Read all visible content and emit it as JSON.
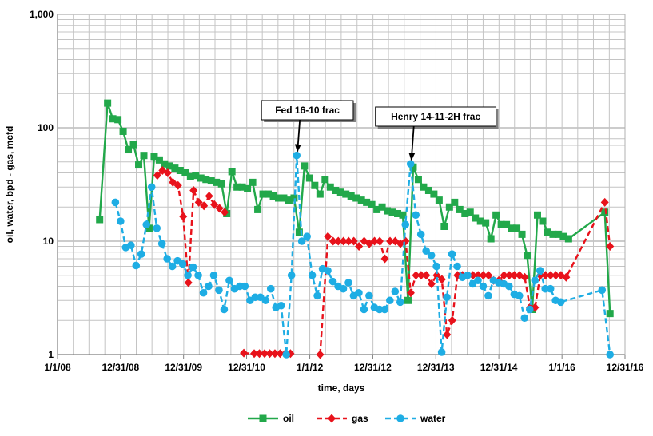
{
  "chart_data": {
    "type": "line",
    "yscale": "log",
    "ylim": [
      1,
      1000
    ],
    "xlim": [
      "2008-01-01",
      "2016-12-31"
    ],
    "ylabel": "oil, water, bpd - gas, mcfd",
    "xlabel": "time, days",
    "x_ticks": [
      {
        "date": "2008-01-01",
        "label": "1/1/08"
      },
      {
        "date": "2008-12-31",
        "label": "12/31/08"
      },
      {
        "date": "2009-12-31",
        "label": "12/31/09"
      },
      {
        "date": "2010-12-31",
        "label": "12/31/10"
      },
      {
        "date": "2012-01-01",
        "label": "1/1/12"
      },
      {
        "date": "2012-12-31",
        "label": "12/31/12"
      },
      {
        "date": "2013-12-31",
        "label": "12/31/13"
      },
      {
        "date": "2014-12-31",
        "label": "12/31/14"
      },
      {
        "date": "2016-01-01",
        "label": "1/1/16"
      },
      {
        "date": "2016-12-31",
        "label": "12/31/16"
      }
    ],
    "y_ticks": [
      {
        "value": 1,
        "label": "1"
      },
      {
        "value": 10,
        "label": "10"
      },
      {
        "value": 100,
        "label": "100"
      },
      {
        "value": 1000,
        "label": "1,000"
      }
    ],
    "grid": true,
    "legend_position": "bottom-center",
    "series": [
      {
        "name": "oil",
        "color": "#22A84A",
        "marker": "square",
        "dash": "solid",
        "points": [
          [
            "2008-09-01",
            15.5
          ],
          [
            "2008-10-17",
            165
          ],
          [
            "2008-11-16",
            120
          ],
          [
            "2008-12-16",
            118
          ],
          [
            "2009-01-15",
            93
          ],
          [
            "2009-02-14",
            64
          ],
          [
            "2009-03-16",
            71
          ],
          [
            "2009-04-15",
            47
          ],
          [
            "2009-05-15",
            57
          ],
          [
            "2009-06-14",
            13
          ],
          [
            "2009-07-14",
            56
          ],
          [
            "2009-08-13",
            52
          ],
          [
            "2009-09-12",
            48
          ],
          [
            "2009-10-12",
            46
          ],
          [
            "2009-11-11",
            44
          ],
          [
            "2009-12-11",
            42
          ],
          [
            "2010-01-10",
            40
          ],
          [
            "2010-02-09",
            37
          ],
          [
            "2010-03-11",
            38
          ],
          [
            "2010-04-10",
            36
          ],
          [
            "2010-05-10",
            35
          ],
          [
            "2010-06-09",
            34
          ],
          [
            "2010-07-09",
            33
          ],
          [
            "2010-08-08",
            32
          ],
          [
            "2010-09-07",
            17.5
          ],
          [
            "2010-10-07",
            41
          ],
          [
            "2010-11-06",
            30
          ],
          [
            "2010-12-06",
            30
          ],
          [
            "2011-01-05",
            29
          ],
          [
            "2011-02-04",
            33
          ],
          [
            "2011-03-06",
            19
          ],
          [
            "2011-04-05",
            26
          ],
          [
            "2011-05-05",
            26
          ],
          [
            "2011-06-04",
            25
          ],
          [
            "2011-07-04",
            24
          ],
          [
            "2011-08-03",
            24
          ],
          [
            "2011-09-02",
            23
          ],
          [
            "2011-10-02",
            24
          ],
          [
            "2011-11-01",
            12
          ],
          [
            "2011-12-01",
            46
          ],
          [
            "2011-12-31",
            36
          ],
          [
            "2012-01-30",
            31
          ],
          [
            "2012-02-29",
            26
          ],
          [
            "2012-03-30",
            35
          ],
          [
            "2012-04-29",
            30
          ],
          [
            "2012-05-29",
            28
          ],
          [
            "2012-06-28",
            27
          ],
          [
            "2012-07-28",
            26
          ],
          [
            "2012-08-27",
            25
          ],
          [
            "2012-09-26",
            24
          ],
          [
            "2012-10-26",
            23
          ],
          [
            "2012-11-25",
            22
          ],
          [
            "2012-12-25",
            21
          ],
          [
            "2013-01-24",
            19
          ],
          [
            "2013-02-23",
            20
          ],
          [
            "2013-03-25",
            18.5
          ],
          [
            "2013-04-24",
            18
          ],
          [
            "2013-05-24",
            17.5
          ],
          [
            "2013-06-23",
            17
          ],
          [
            "2013-07-23",
            3
          ],
          [
            "2013-08-22",
            45
          ],
          [
            "2013-09-21",
            35
          ],
          [
            "2013-10-21",
            30
          ],
          [
            "2013-11-20",
            28
          ],
          [
            "2013-12-20",
            26
          ],
          [
            "2014-01-19",
            23
          ],
          [
            "2014-02-18",
            13.5
          ],
          [
            "2014-03-20",
            20
          ],
          [
            "2014-04-19",
            22
          ],
          [
            "2014-05-19",
            19
          ],
          [
            "2014-06-18",
            17.5
          ],
          [
            "2014-07-18",
            18
          ],
          [
            "2014-08-17",
            16
          ],
          [
            "2014-09-16",
            15
          ],
          [
            "2014-10-16",
            14.5
          ],
          [
            "2014-11-15",
            10.5
          ],
          [
            "2014-12-15",
            17
          ],
          [
            "2015-01-14",
            14
          ],
          [
            "2015-02-13",
            14
          ],
          [
            "2015-03-15",
            13
          ],
          [
            "2015-04-14",
            13
          ],
          [
            "2015-05-14",
            11.5
          ],
          [
            "2015-06-13",
            7.5
          ],
          [
            "2015-07-13",
            2.5
          ],
          [
            "2015-08-12",
            17
          ],
          [
            "2015-09-11",
            15
          ],
          [
            "2015-10-11",
            12
          ],
          [
            "2015-11-10",
            11.5
          ],
          [
            "2015-12-10",
            11.5
          ],
          [
            "2016-01-09",
            11
          ],
          [
            "2016-02-08",
            10.5
          ],
          [
            "2016-09-05",
            18
          ],
          [
            "2016-10-05",
            2.3
          ]
        ]
      },
      {
        "name": "gas",
        "color": "#E8121B",
        "marker": "diamond",
        "dash": "dashed",
        "points": [
          [
            "2009-08-01",
            38
          ],
          [
            "2009-08-31",
            42
          ],
          [
            "2009-09-30",
            40
          ],
          [
            "2009-10-30",
            33
          ],
          [
            "2009-11-29",
            31
          ],
          [
            "2009-12-29",
            16.5
          ],
          [
            "2010-01-28",
            4.3
          ],
          [
            "2010-02-27",
            28
          ],
          [
            "2010-03-29",
            22
          ],
          [
            "2010-04-28",
            20.5
          ],
          [
            "2010-05-28",
            25
          ],
          [
            "2010-06-27",
            21
          ],
          [
            "2010-07-27",
            19.5
          ],
          [
            "2010-08-26",
            18
          ],
          null,
          [
            "2010-12-15",
            1.03
          ],
          [
            "2011-02-13",
            1.02
          ],
          [
            "2011-03-15",
            1.02
          ],
          [
            "2011-04-14",
            1.02
          ],
          [
            "2011-05-14",
            1.02
          ],
          [
            "2011-06-13",
            1.02
          ],
          [
            "2011-07-13",
            1.02
          ],
          [
            "2011-08-12",
            1.02
          ],
          [
            "2011-09-11",
            1.02
          ],
          null,
          [
            "2012-03-01",
            1
          ],
          [
            "2012-04-15",
            11
          ],
          [
            "2012-05-15",
            10
          ],
          [
            "2012-06-14",
            10
          ],
          [
            "2012-07-14",
            10
          ],
          [
            "2012-08-13",
            10
          ],
          [
            "2012-09-12",
            10
          ],
          [
            "2012-10-12",
            9
          ],
          [
            "2012-11-11",
            10
          ],
          [
            "2012-12-11",
            9.5
          ],
          [
            "2013-01-10",
            10
          ],
          [
            "2013-02-09",
            10
          ],
          [
            "2013-03-11",
            7
          ],
          [
            "2013-04-10",
            10
          ],
          [
            "2013-05-10",
            10
          ],
          [
            "2013-06-09",
            9.5
          ],
          [
            "2013-07-09",
            10
          ],
          [
            "2013-08-08",
            3.5
          ],
          [
            "2013-09-07",
            5
          ],
          [
            "2013-10-07",
            5
          ],
          [
            "2013-11-06",
            5
          ],
          [
            "2013-12-06",
            4.2
          ],
          [
            "2014-01-05",
            5
          ],
          [
            "2014-02-04",
            4.6
          ],
          [
            "2014-03-06",
            1.5
          ],
          [
            "2014-04-05",
            2
          ],
          [
            "2014-05-05",
            5
          ],
          [
            "2014-06-04",
            5
          ],
          [
            "2014-07-04",
            5
          ],
          [
            "2014-08-03",
            5
          ],
          [
            "2014-09-02",
            5
          ],
          [
            "2014-10-02",
            5
          ],
          [
            "2014-11-01",
            5
          ],
          [
            "2014-12-01",
            4.5
          ],
          [
            "2014-12-31",
            4.5
          ],
          [
            "2015-01-30",
            5
          ],
          [
            "2015-03-01",
            5
          ],
          [
            "2015-03-31",
            5
          ],
          [
            "2015-04-30",
            5
          ],
          [
            "2015-05-30",
            4.8
          ],
          [
            "2015-06-29",
            2.6
          ],
          [
            "2015-07-29",
            2.6
          ],
          [
            "2015-08-28",
            5
          ],
          [
            "2015-09-27",
            5
          ],
          [
            "2015-10-27",
            5
          ],
          [
            "2015-11-26",
            5
          ],
          [
            "2015-12-26",
            5
          ],
          [
            "2016-01-25",
            4.8
          ],
          [
            "2016-09-05",
            22
          ],
          [
            "2016-10-05",
            9
          ]
        ]
      },
      {
        "name": "water",
        "color": "#1EADE4",
        "marker": "circle",
        "dash": "dashed",
        "points": [
          [
            "2008-12-01",
            22
          ],
          [
            "2008-12-31",
            15
          ],
          [
            "2009-01-30",
            8.8
          ],
          [
            "2009-03-01",
            9.2
          ],
          [
            "2009-03-31",
            6.1
          ],
          [
            "2009-04-30",
            7.7
          ],
          [
            "2009-05-30",
            14
          ],
          [
            "2009-06-29",
            30
          ],
          [
            "2009-07-29",
            13
          ],
          [
            "2009-08-28",
            9.5
          ],
          [
            "2009-09-27",
            7
          ],
          [
            "2009-10-27",
            6
          ],
          [
            "2009-11-26",
            6.7
          ],
          [
            "2009-12-26",
            6.3
          ],
          [
            "2010-01-25",
            5
          ],
          [
            "2010-02-24",
            5.9
          ],
          [
            "2010-03-26",
            5
          ],
          [
            "2010-04-25",
            3.5
          ],
          [
            "2010-05-25",
            4
          ],
          [
            "2010-06-24",
            5
          ],
          [
            "2010-07-24",
            3.7
          ],
          [
            "2010-08-23",
            2.5
          ],
          [
            "2010-09-22",
            4.5
          ],
          [
            "2010-10-22",
            3.8
          ],
          [
            "2010-11-21",
            4
          ],
          [
            "2010-12-21",
            4
          ],
          [
            "2011-01-20",
            3
          ],
          [
            "2011-02-19",
            3.2
          ],
          [
            "2011-03-21",
            3.2
          ],
          [
            "2011-04-20",
            3
          ],
          [
            "2011-05-20",
            3.8
          ],
          [
            "2011-06-19",
            2.6
          ],
          [
            "2011-07-19",
            2.7
          ],
          [
            "2011-08-18",
            1
          ],
          [
            "2011-09-17",
            5
          ],
          [
            "2011-10-17",
            57
          ],
          [
            "2011-11-16",
            10
          ],
          [
            "2011-12-16",
            11
          ],
          [
            "2012-01-15",
            5
          ],
          [
            "2012-02-14",
            3.3
          ],
          [
            "2012-03-15",
            5.7
          ],
          [
            "2012-04-14",
            5.5
          ],
          [
            "2012-05-14",
            4.4
          ],
          [
            "2012-06-13",
            4
          ],
          [
            "2012-07-13",
            3.8
          ],
          [
            "2012-08-12",
            4.3
          ],
          [
            "2012-09-11",
            3.3
          ],
          [
            "2012-10-11",
            3.5
          ],
          [
            "2012-11-10",
            2.5
          ],
          [
            "2012-12-10",
            3.3
          ],
          [
            "2013-01-09",
            2.6
          ],
          [
            "2013-02-08",
            2.5
          ],
          [
            "2013-03-10",
            2.5
          ],
          [
            "2013-04-09",
            3
          ],
          [
            "2013-05-09",
            3.6
          ],
          [
            "2013-06-08",
            2.9
          ],
          [
            "2013-07-08",
            14
          ],
          [
            "2013-08-07",
            48
          ],
          [
            "2013-09-06",
            17
          ],
          [
            "2013-10-06",
            11.5
          ],
          [
            "2013-11-05",
            8.2
          ],
          [
            "2013-12-05",
            7.5
          ],
          [
            "2014-01-04",
            6
          ],
          [
            "2014-02-03",
            1.05
          ],
          [
            "2014-03-05",
            3.2
          ],
          [
            "2014-04-04",
            7.7
          ],
          [
            "2014-05-04",
            6
          ],
          [
            "2014-06-03",
            4.8
          ],
          [
            "2014-07-03",
            5
          ],
          [
            "2014-08-02",
            4.2
          ],
          [
            "2014-09-01",
            4.5
          ],
          [
            "2014-10-01",
            4
          ],
          [
            "2014-10-31",
            3.3
          ],
          [
            "2014-11-30",
            4.5
          ],
          [
            "2014-12-30",
            4.3
          ],
          [
            "2015-01-29",
            4.2
          ],
          [
            "2015-02-28",
            4
          ],
          [
            "2015-03-30",
            3.4
          ],
          [
            "2015-04-29",
            3.3
          ],
          [
            "2015-05-29",
            2.1
          ],
          [
            "2015-06-28",
            2.5
          ],
          [
            "2015-07-28",
            4.5
          ],
          [
            "2015-08-27",
            5.5
          ],
          [
            "2015-09-26",
            3.8
          ],
          [
            "2015-10-26",
            3.8
          ],
          [
            "2015-11-25",
            3
          ],
          [
            "2015-12-25",
            2.9
          ],
          [
            "2016-08-20",
            3.7
          ],
          [
            "2016-10-05",
            1
          ]
        ]
      }
    ],
    "annotations": [
      {
        "text": "Fed 16-10 frac",
        "target_date": "2011-10-17",
        "target_value": 57
      },
      {
        "text": "Henry 14-11-2H frac",
        "target_date": "2013-08-07",
        "target_value": 48
      }
    ]
  }
}
